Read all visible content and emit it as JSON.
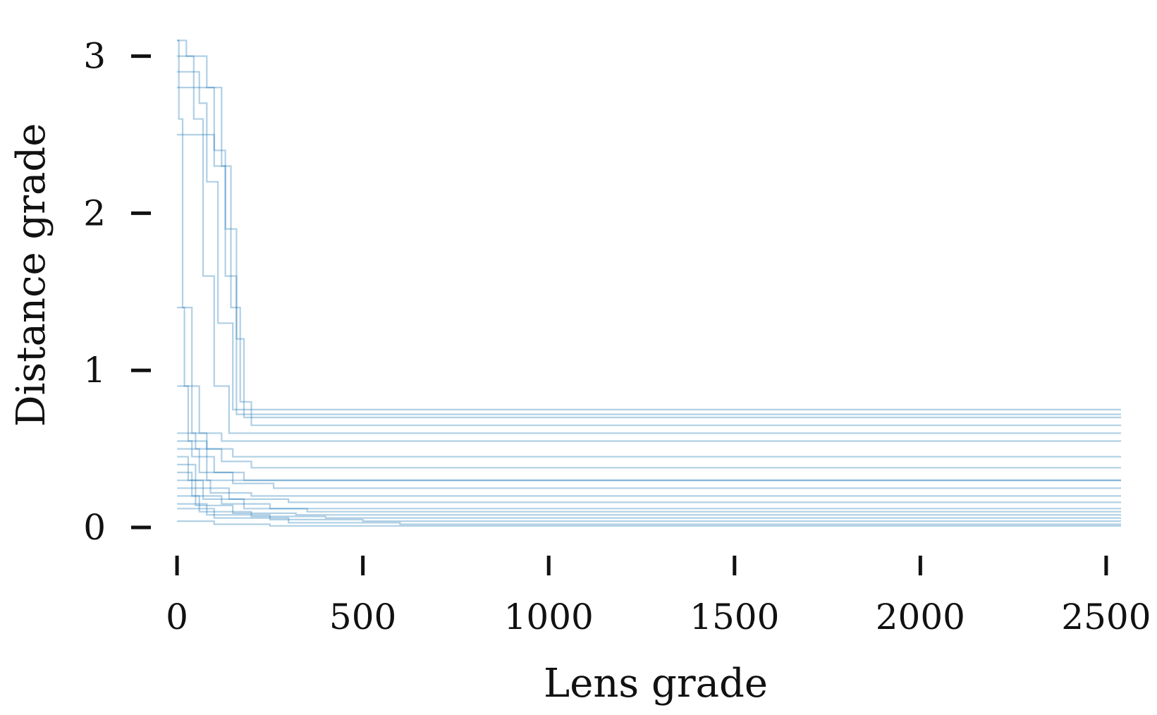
{
  "chart_data": {
    "type": "line",
    "title": "",
    "xlabel": "Lens grade",
    "ylabel": "Distance grade",
    "xlim": [
      -40,
      2540
    ],
    "ylim": [
      0,
      3.2
    ],
    "x_ticks": [
      {
        "value": 0,
        "label": "0"
      },
      {
        "value": 500,
        "label": "500"
      },
      {
        "value": 1000,
        "label": "1000"
      },
      {
        "value": 1500,
        "label": "1500"
      },
      {
        "value": 2000,
        "label": "2000"
      },
      {
        "value": 2500,
        "label": "2500"
      }
    ],
    "y_ticks": [
      {
        "value": 0,
        "label": "0"
      },
      {
        "value": 1,
        "label": "1"
      },
      {
        "value": 2,
        "label": "2"
      },
      {
        "value": 3,
        "label": "3"
      }
    ],
    "grid": false,
    "legend": "none",
    "line_color": "#1f77b4",
    "series": [
      {
        "x": [
          0,
          5,
          15,
          40,
          80,
          2540
        ],
        "y": [
          3.1,
          2.6,
          1.4,
          0.6,
          0.3,
          0.3
        ]
      },
      {
        "x": [
          0,
          25,
          45,
          70,
          100,
          140,
          2540
        ],
        "y": [
          3.1,
          3.0,
          2.6,
          1.6,
          0.9,
          0.6,
          0.6
        ]
      },
      {
        "x": [
          0,
          40,
          60,
          80,
          110,
          150,
          2540
        ],
        "y": [
          2.9,
          2.9,
          2.7,
          2.2,
          1.3,
          0.75,
          0.75
        ]
      },
      {
        "x": [
          0,
          60,
          80,
          100,
          130,
          160,
          2540
        ],
        "y": [
          3.0,
          3.0,
          2.8,
          2.3,
          1.6,
          0.72,
          0.72
        ]
      },
      {
        "x": [
          0,
          90,
          120,
          145,
          170,
          200,
          2540
        ],
        "y": [
          2.8,
          2.8,
          2.3,
          1.4,
          0.8,
          0.65,
          0.65
        ]
      },
      {
        "x": [
          0,
          100,
          130,
          160,
          180,
          2540
        ],
        "y": [
          2.5,
          2.4,
          1.9,
          1.2,
          0.7,
          0.7
        ]
      },
      {
        "x": [
          0,
          20,
          60,
          120,
          2540
        ],
        "y": [
          1.4,
          0.9,
          0.6,
          0.55,
          0.55
        ]
      },
      {
        "x": [
          0,
          30,
          80,
          150,
          2540
        ],
        "y": [
          0.9,
          0.55,
          0.5,
          0.45,
          0.45
        ]
      },
      {
        "x": [
          0,
          50,
          120,
          200,
          2540
        ],
        "y": [
          0.6,
          0.5,
          0.42,
          0.38,
          0.38
        ]
      },
      {
        "x": [
          0,
          40,
          100,
          180,
          2540
        ],
        "y": [
          0.55,
          0.45,
          0.35,
          0.3,
          0.3
        ]
      },
      {
        "x": [
          0,
          60,
          150,
          260,
          2540
        ],
        "y": [
          0.5,
          0.35,
          0.28,
          0.25,
          0.25
        ]
      },
      {
        "x": [
          0,
          30,
          90,
          200,
          2540
        ],
        "y": [
          0.45,
          0.3,
          0.22,
          0.2,
          0.2
        ]
      },
      {
        "x": [
          0,
          50,
          140,
          300,
          2540
        ],
        "y": [
          0.4,
          0.25,
          0.18,
          0.16,
          0.16
        ]
      },
      {
        "x": [
          0,
          40,
          120,
          250,
          2540
        ],
        "y": [
          0.35,
          0.2,
          0.15,
          0.12,
          0.12
        ]
      },
      {
        "x": [
          0,
          70,
          180,
          350,
          2540
        ],
        "y": [
          0.3,
          0.18,
          0.12,
          0.1,
          0.1
        ]
      },
      {
        "x": [
          0,
          50,
          150,
          320,
          2540
        ],
        "y": [
          0.25,
          0.14,
          0.09,
          0.08,
          0.08
        ]
      },
      {
        "x": [
          0,
          60,
          200,
          400,
          2540
        ],
        "y": [
          0.2,
          0.1,
          0.07,
          0.06,
          0.06
        ]
      },
      {
        "x": [
          0,
          80,
          250,
          500,
          2540
        ],
        "y": [
          0.15,
          0.08,
          0.05,
          0.04,
          0.04
        ]
      },
      {
        "x": [
          0,
          100,
          300,
          600,
          2540
        ],
        "y": [
          0.12,
          0.06,
          0.03,
          0.02,
          0.02
        ]
      },
      {
        "x": [
          0,
          100,
          250,
          2540
        ],
        "y": [
          0.04,
          0.02,
          0.01,
          0.01
        ]
      }
    ]
  }
}
